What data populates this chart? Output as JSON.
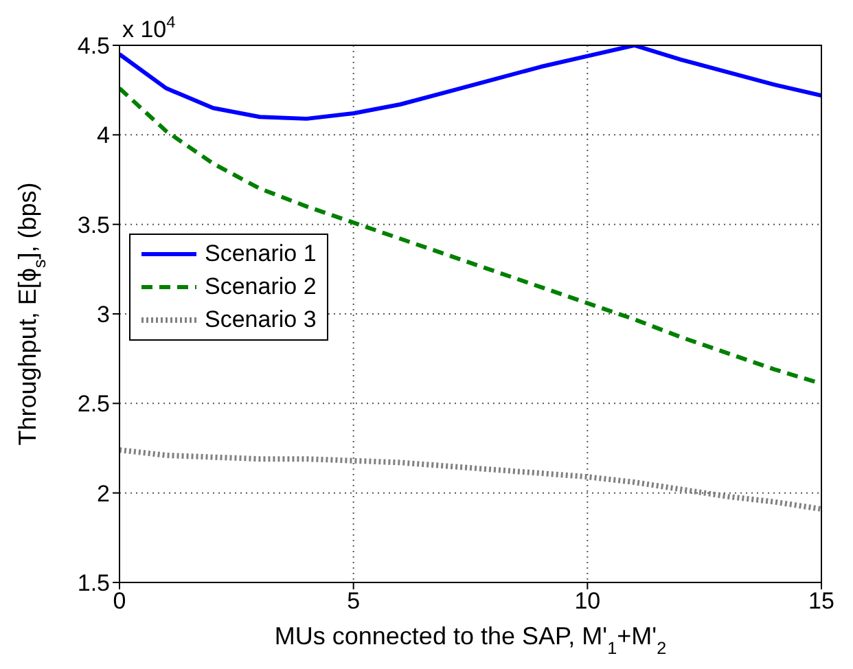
{
  "chart_data": {
    "type": "line",
    "xlabel": "MUs connected to the SAP, M'$_{1}$+M'$_{2}$",
    "ylabel": "Throughput, E[ϕ$_{s}$], (bps)",
    "annotations": [
      "x 10$^{4}$"
    ],
    "x": [
      0,
      1,
      2,
      3,
      4,
      5,
      6,
      7,
      8,
      9,
      10,
      11,
      12,
      13,
      14,
      15
    ],
    "series": [
      {
        "name": "Scenario 1",
        "color": "#0000ff",
        "line_style": "solid",
        "values": [
          4.45,
          4.26,
          4.15,
          4.1,
          4.09,
          4.12,
          4.17,
          4.24,
          4.31,
          4.38,
          4.44,
          4.5,
          4.42,
          4.35,
          4.28,
          4.22
        ]
      },
      {
        "name": "Scenario 2",
        "color": "#008000",
        "line_style": "dashed",
        "values": [
          4.26,
          4.02,
          3.84,
          3.7,
          3.6,
          3.51,
          3.42,
          3.33,
          3.24,
          3.15,
          3.06,
          2.97,
          2.87,
          2.78,
          2.69,
          2.61
        ]
      },
      {
        "name": "Scenario 3",
        "color": "#808080",
        "line_style": "dotted",
        "values": [
          2.24,
          2.21,
          2.2,
          2.19,
          2.19,
          2.18,
          2.17,
          2.15,
          2.13,
          2.11,
          2.09,
          2.06,
          2.02,
          1.98,
          1.95,
          1.91
        ]
      }
    ],
    "xlim": [
      0,
      15
    ],
    "xticks": [
      0,
      5,
      10,
      15
    ],
    "ylim": [
      1.5,
      4.5
    ],
    "yticks": [
      1.5,
      2,
      2.5,
      3,
      3.5,
      4,
      4.5
    ],
    "grid": true,
    "legend": "left",
    "marker": "none"
  }
}
